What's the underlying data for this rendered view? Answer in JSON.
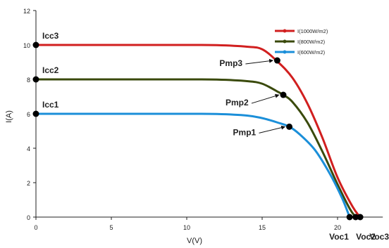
{
  "chart_data": {
    "type": "line",
    "title": "",
    "xlabel": "V(V)",
    "ylabel": "I(A)",
    "xlim": [
      0,
      23
    ],
    "ylim": [
      0,
      12
    ],
    "x_ticks": [
      0,
      5,
      10,
      15,
      20
    ],
    "y_ticks": [
      0,
      2,
      4,
      6,
      8,
      10,
      12
    ],
    "grid": false,
    "legend_position": "top-right",
    "series": [
      {
        "name": "I(1000W/m2)",
        "color": "#d11f1f",
        "points": [
          [
            0,
            10.0
          ],
          [
            5,
            10.0
          ],
          [
            10,
            10.0
          ],
          [
            12,
            9.99
          ],
          [
            14,
            9.9
          ],
          [
            15,
            9.75
          ],
          [
            16,
            9.05
          ],
          [
            17,
            8.1
          ],
          [
            18,
            6.6
          ],
          [
            19,
            4.6
          ],
          [
            20,
            2.3
          ],
          [
            21,
            0.6
          ],
          [
            21.5,
            0.0
          ]
        ]
      },
      {
        "name": "I(800W/m2)",
        "color": "#3a4a0c",
        "points": [
          [
            0,
            8.0
          ],
          [
            5,
            8.0
          ],
          [
            10,
            8.0
          ],
          [
            12,
            7.99
          ],
          [
            14,
            7.9
          ],
          [
            15,
            7.75
          ],
          [
            16,
            7.3
          ],
          [
            16.4,
            7.1
          ],
          [
            17,
            6.7
          ],
          [
            18,
            5.5
          ],
          [
            19,
            3.8
          ],
          [
            20,
            1.9
          ],
          [
            20.8,
            0.5
          ],
          [
            21.2,
            0.0
          ]
        ]
      },
      {
        "name": "I(600W/m2)",
        "color": "#1b8fd9",
        "points": [
          [
            0,
            6.0
          ],
          [
            5,
            6.0
          ],
          [
            10,
            6.0
          ],
          [
            12,
            5.99
          ],
          [
            14,
            5.9
          ],
          [
            15,
            5.75
          ],
          [
            16,
            5.5
          ],
          [
            16.8,
            5.25
          ],
          [
            17.5,
            4.8
          ],
          [
            18.5,
            3.9
          ],
          [
            19.5,
            2.5
          ],
          [
            20.3,
            1.1
          ],
          [
            20.8,
            0.0
          ]
        ]
      }
    ],
    "markers": [
      {
        "x": 0,
        "y": 10,
        "label": "Icc3",
        "color": "#d11f1f"
      },
      {
        "x": 0,
        "y": 8,
        "label": "Icc2",
        "color": "#3a4a0c"
      },
      {
        "x": 0,
        "y": 6,
        "label": "Icc1",
        "color": "#1b8fd9"
      },
      {
        "x": 16.0,
        "y": 9.1,
        "label": "Pmp3",
        "color": "#d11f1f"
      },
      {
        "x": 16.4,
        "y": 7.1,
        "label": "Pmp2",
        "color": "#3a4a0c"
      },
      {
        "x": 16.8,
        "y": 5.25,
        "label": "Pmp1",
        "color": "#1b8fd9"
      },
      {
        "x": 20.8,
        "y": 0,
        "label": "Voc1",
        "color": "#1b8fd9"
      },
      {
        "x": 21.2,
        "y": 0,
        "label": "Voc2",
        "color": "#3a4a0c"
      },
      {
        "x": 21.5,
        "y": 0,
        "label": "Voc3",
        "color": "#d11f1f"
      }
    ]
  }
}
